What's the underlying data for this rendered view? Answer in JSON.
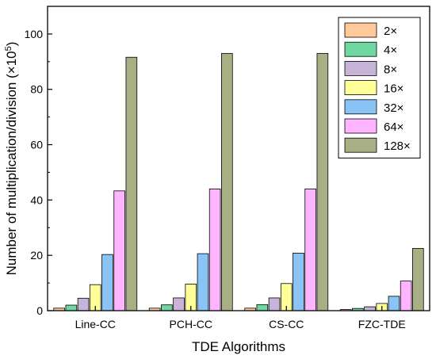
{
  "chart_data": {
    "type": "bar",
    "xlabel": "TDE Algorithms",
    "ylabel": "Number of multiplication/division (×10",
    "ylabel_exp": "5",
    "ylabel_close": ")",
    "ylim": [
      0,
      110
    ],
    "yticks": [
      0,
      20,
      40,
      60,
      80,
      100
    ],
    "categories": [
      "Line-CC",
      "PCH-CC",
      "CS-CC",
      "FZC-TDE"
    ],
    "legend_position": "top-right",
    "series": [
      {
        "name": "2×",
        "color": "#FFC99A",
        "values": [
          0.9,
          0.9,
          0.9,
          0.4
        ]
      },
      {
        "name": "4×",
        "color": "#6ED8A0",
        "values": [
          2.0,
          2.1,
          2.2,
          0.8
        ]
      },
      {
        "name": "8×",
        "color": "#C8B4D8",
        "values": [
          4.5,
          4.6,
          4.6,
          1.4
        ]
      },
      {
        "name": "16×",
        "color": "#FFFF9A",
        "values": [
          9.4,
          9.6,
          9.8,
          2.6
        ]
      },
      {
        "name": "32×",
        "color": "#8AC4F5",
        "values": [
          20.3,
          20.6,
          20.8,
          5.2
        ]
      },
      {
        "name": "64×",
        "color": "#FFB4FF",
        "values": [
          43.3,
          44.0,
          44.0,
          10.7
        ]
      },
      {
        "name": "128×",
        "color": "#A9AF84",
        "values": [
          91.6,
          93.0,
          93.0,
          22.5
        ]
      }
    ]
  }
}
